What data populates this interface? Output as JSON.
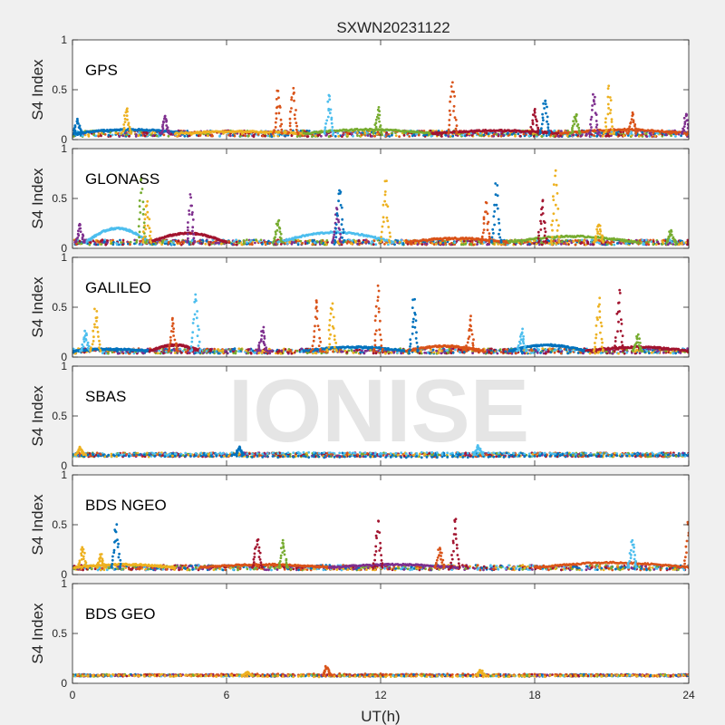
{
  "figure": {
    "title": "SXWN20231122",
    "watermark": "IONISE",
    "xlabel": "UT(h)",
    "ylabel": "S4 Index"
  },
  "chart_data": {
    "type": "scatter",
    "title": "SXWN20231122",
    "xlabel": "UT(h)",
    "xlim": [
      0,
      24
    ],
    "xticks": [
      0,
      6,
      12,
      18,
      24
    ],
    "xtick_labels": [
      "0",
      "6",
      "12",
      "18",
      "24"
    ],
    "ylim": [
      0,
      1
    ],
    "yticks": [
      0,
      0.5,
      1
    ],
    "ytick_labels": [
      "0",
      "0.5",
      "1"
    ],
    "grid": false,
    "series_colors": [
      "#0072BD",
      "#D95319",
      "#EDB120",
      "#7E2F8E",
      "#77AC30",
      "#4DBEEE",
      "#A2142F"
    ],
    "panels": [
      {
        "label": "GPS",
        "ylabel": "S4 Index",
        "baseline": 0.06,
        "noise": 0.06,
        "spikes": [
          [
            0.2,
            0.22,
            0
          ],
          [
            2.1,
            0.35,
            2
          ],
          [
            3.6,
            0.28,
            3
          ],
          [
            8.0,
            0.55,
            1
          ],
          [
            8.6,
            0.58,
            1
          ],
          [
            10.0,
            0.5,
            5
          ],
          [
            11.9,
            0.35,
            4
          ],
          [
            14.8,
            0.65,
            1
          ],
          [
            18.0,
            0.35,
            6
          ],
          [
            18.4,
            0.48,
            0
          ],
          [
            19.6,
            0.3,
            4
          ],
          [
            20.3,
            0.52,
            3
          ],
          [
            20.9,
            0.58,
            2
          ],
          [
            21.8,
            0.3,
            1
          ],
          [
            23.9,
            0.3,
            3
          ]
        ],
        "arcs": [
          [
            0,
            4.5,
            0.1,
            0
          ],
          [
            4,
            9,
            0.08,
            2
          ],
          [
            9,
            14,
            0.1,
            4
          ],
          [
            14,
            19,
            0.09,
            6
          ],
          [
            19,
            24,
            0.1,
            1
          ]
        ]
      },
      {
        "label": "GLONASS",
        "ylabel": "S4 Index",
        "baseline": 0.06,
        "noise": 0.05,
        "spikes": [
          [
            0.3,
            0.28,
            3
          ],
          [
            2.7,
            0.78,
            4
          ],
          [
            2.9,
            0.52,
            2
          ],
          [
            4.6,
            0.6,
            3
          ],
          [
            8.0,
            0.32,
            4
          ],
          [
            10.3,
            0.45,
            3
          ],
          [
            10.4,
            0.7,
            0
          ],
          [
            12.2,
            0.75,
            2
          ],
          [
            16.1,
            0.5,
            1
          ],
          [
            16.5,
            0.7,
            0
          ],
          [
            18.3,
            0.52,
            6
          ],
          [
            18.8,
            0.85,
            2
          ],
          [
            20.5,
            0.28,
            2
          ],
          [
            23.3,
            0.2,
            4
          ]
        ],
        "arcs": [
          [
            0.5,
            3,
            0.2,
            5
          ],
          [
            3,
            6,
            0.15,
            6
          ],
          [
            8,
            12.5,
            0.16,
            5
          ],
          [
            13,
            17,
            0.1,
            1
          ],
          [
            17,
            22,
            0.12,
            4
          ]
        ]
      },
      {
        "label": "GALILEO",
        "ylabel": "S4 Index",
        "baseline": 0.06,
        "noise": 0.05,
        "spikes": [
          [
            0.5,
            0.28,
            5
          ],
          [
            0.9,
            0.55,
            2
          ],
          [
            3.9,
            0.45,
            1
          ],
          [
            4.8,
            0.72,
            5
          ],
          [
            7.4,
            0.32,
            3
          ],
          [
            9.5,
            0.72,
            1
          ],
          [
            10.1,
            0.6,
            2
          ],
          [
            11.9,
            0.8,
            1
          ],
          [
            13.3,
            0.63,
            0
          ],
          [
            15.5,
            0.45,
            1
          ],
          [
            17.5,
            0.3,
            5
          ],
          [
            20.5,
            0.65,
            2
          ],
          [
            21.3,
            0.75,
            6
          ],
          [
            22.0,
            0.25,
            4
          ]
        ],
        "arcs": [
          [
            0,
            3,
            0.08,
            0
          ],
          [
            3,
            5,
            0.12,
            6
          ],
          [
            9,
            13,
            0.1,
            0
          ],
          [
            13,
            16,
            0.11,
            1
          ],
          [
            17,
            20,
            0.12,
            0
          ],
          [
            20,
            24,
            0.1,
            6
          ]
        ]
      },
      {
        "label": "SBAS",
        "ylabel": "S4 Index",
        "baseline": 0.11,
        "noise": 0.04,
        "spikes": [
          [
            0.3,
            0.2,
            2
          ],
          [
            6.5,
            0.2,
            0
          ],
          [
            15.8,
            0.22,
            5
          ]
        ],
        "arcs": [
          [
            0,
            24,
            0.13,
            5
          ],
          [
            0,
            24,
            0.09,
            0
          ]
        ]
      },
      {
        "label": "BDS NGEO",
        "ylabel": "S4 Index",
        "baseline": 0.07,
        "noise": 0.05,
        "spikes": [
          [
            0.4,
            0.3,
            2
          ],
          [
            1.1,
            0.22,
            2
          ],
          [
            1.7,
            0.55,
            0
          ],
          [
            7.2,
            0.42,
            6
          ],
          [
            8.2,
            0.38,
            4
          ],
          [
            11.9,
            0.62,
            6
          ],
          [
            14.3,
            0.3,
            1
          ],
          [
            14.9,
            0.66,
            6
          ],
          [
            21.8,
            0.38,
            5
          ],
          [
            24.0,
            0.58,
            1
          ]
        ],
        "arcs": [
          [
            0,
            4,
            0.1,
            2
          ],
          [
            5,
            10,
            0.1,
            1
          ],
          [
            10,
            15,
            0.1,
            3
          ],
          [
            18,
            24,
            0.12,
            1
          ]
        ]
      },
      {
        "label": "BDS GEO",
        "ylabel": "S4 Index",
        "baseline": 0.08,
        "noise": 0.02,
        "spikes": [
          [
            6.8,
            0.12,
            2
          ],
          [
            9.9,
            0.18,
            1
          ],
          [
            15.9,
            0.14,
            2
          ]
        ],
        "arcs": [
          [
            0,
            24,
            0.09,
            1
          ],
          [
            0,
            24,
            0.07,
            2
          ]
        ]
      }
    ]
  }
}
